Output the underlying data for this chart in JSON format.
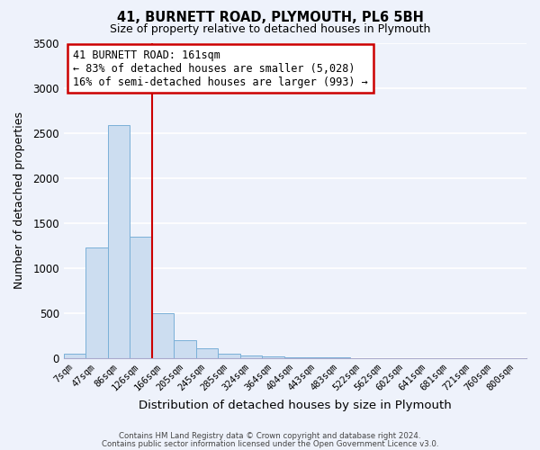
{
  "title": "41, BURNETT ROAD, PLYMOUTH, PL6 5BH",
  "subtitle": "Size of property relative to detached houses in Plymouth",
  "xlabel": "Distribution of detached houses by size in Plymouth",
  "ylabel": "Number of detached properties",
  "bar_color": "#ccddf0",
  "bar_edge_color": "#7ab0d8",
  "categories": [
    "7sqm",
    "47sqm",
    "86sqm",
    "126sqm",
    "166sqm",
    "205sqm",
    "245sqm",
    "285sqm",
    "324sqm",
    "364sqm",
    "404sqm",
    "443sqm",
    "483sqm",
    "522sqm",
    "562sqm",
    "602sqm",
    "641sqm",
    "681sqm",
    "721sqm",
    "760sqm",
    "800sqm"
  ],
  "values": [
    50,
    1230,
    2590,
    1350,
    500,
    200,
    105,
    50,
    30,
    20,
    10,
    5,
    3,
    0,
    0,
    0,
    0,
    0,
    0,
    0,
    0
  ],
  "ylim": [
    0,
    3500
  ],
  "yticks": [
    0,
    500,
    1000,
    1500,
    2000,
    2500,
    3000,
    3500
  ],
  "vline_pos": 3.5,
  "annotation_title": "41 BURNETT ROAD: 161sqm",
  "annotation_line1": "← 83% of detached houses are smaller (5,028)",
  "annotation_line2": "16% of semi-detached houses are larger (993) →",
  "annotation_box_color": "#ffffff",
  "annotation_box_edge": "#cc0000",
  "vline_color": "#cc0000",
  "footer1": "Contains HM Land Registry data © Crown copyright and database right 2024.",
  "footer2": "Contains public sector information licensed under the Open Government Licence v3.0.",
  "background_color": "#eef2fb",
  "grid_color": "#ffffff",
  "spine_color": "#aaaacc"
}
